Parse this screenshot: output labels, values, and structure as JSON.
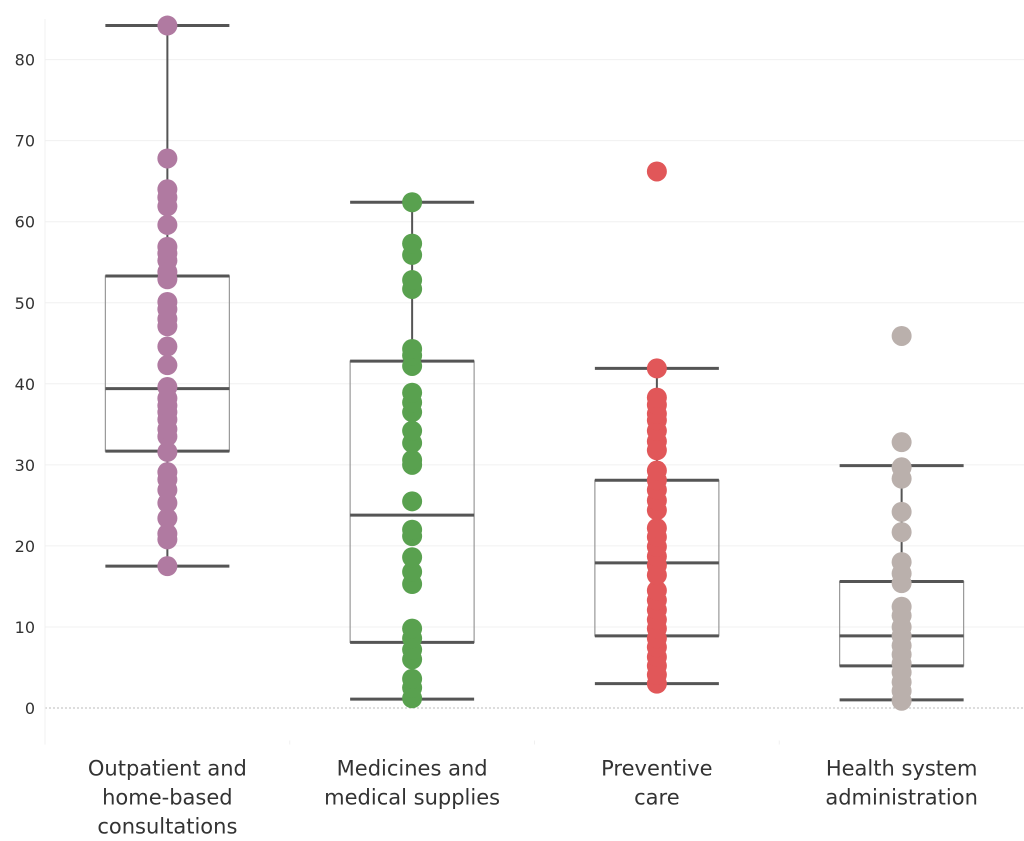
{
  "colors": {
    "background": "#ffffff",
    "grid": "#f0f0f0",
    "zero_line": "#bbbbbb",
    "box_outline": "#999999",
    "whisker": "#555555"
  },
  "chart_data": {
    "type": "box",
    "title": "",
    "xlabel": "",
    "ylabel": "",
    "ylim": [
      -4.5,
      85
    ],
    "yticks": [
      0,
      10,
      20,
      30,
      40,
      50,
      60,
      70,
      80
    ],
    "grid": true,
    "legend": "none",
    "categories": [
      {
        "label": "Outpatient and home-based consultations",
        "label_lines": [
          "Outpatient and",
          "home-based",
          "consultations"
        ],
        "color": "#b07aa1",
        "box": {
          "min": 17.5,
          "q1": 31.7,
          "median": 39.4,
          "q3": 53.3,
          "max": 84.2
        },
        "points": [
          17.5,
          20.8,
          21.5,
          23.4,
          25.3,
          26.9,
          28.2,
          29.1,
          31.6,
          33.5,
          34.4,
          35.6,
          36.5,
          37.3,
          38.2,
          39.6,
          42.3,
          44.6,
          47.1,
          48.0,
          49.2,
          50.1,
          52.9,
          53.8,
          55.2,
          56.1,
          56.9,
          59.6,
          61.9,
          63.0,
          64.0,
          67.8,
          84.2
        ]
      },
      {
        "label": "Medicines and medical supplies",
        "label_lines": [
          "Medicines and",
          "medical supplies"
        ],
        "color": "#59a14f",
        "box": {
          "min": 1.1,
          "q1": 8.1,
          "median": 23.8,
          "q3": 42.8,
          "max": 62.4
        },
        "points": [
          1.2,
          2.5,
          3.6,
          6.0,
          7.2,
          8.6,
          9.8,
          15.3,
          16.8,
          18.6,
          21.2,
          22.0,
          25.5,
          30.0,
          30.6,
          32.7,
          34.2,
          36.5,
          37.7,
          38.9,
          42.2,
          43.5,
          44.3,
          51.7,
          52.8,
          55.9,
          57.3,
          62.4
        ]
      },
      {
        "label": "Preventive care",
        "label_lines": [
          "Preventive",
          "care"
        ],
        "color": "#e15759",
        "box": {
          "min": 3.0,
          "q1": 8.9,
          "median": 17.9,
          "q3": 28.1,
          "max": 41.9
        },
        "points": [
          3.0,
          4.1,
          5.2,
          6.3,
          7.5,
          8.6,
          9.8,
          10.9,
          12.1,
          13.3,
          14.5,
          16.4,
          17.6,
          18.7,
          19.9,
          21.1,
          22.2,
          24.4,
          25.6,
          26.9,
          28.1,
          29.3,
          31.8,
          32.9,
          34.2,
          35.5,
          36.3,
          37.4,
          38.3,
          41.9,
          66.2
        ]
      },
      {
        "label": "Health system administration",
        "label_lines": [
          "Health system",
          "administration"
        ],
        "color": "#bab0ac",
        "box": {
          "min": 1.0,
          "q1": 5.2,
          "median": 8.9,
          "q3": 15.6,
          "max": 29.9
        },
        "points": [
          0.9,
          2.1,
          3.2,
          4.4,
          5.5,
          6.6,
          7.7,
          8.9,
          10.0,
          11.4,
          12.5,
          15.4,
          16.6,
          18.0,
          21.7,
          24.2,
          28.3,
          29.7,
          32.8,
          45.9
        ]
      }
    ]
  }
}
